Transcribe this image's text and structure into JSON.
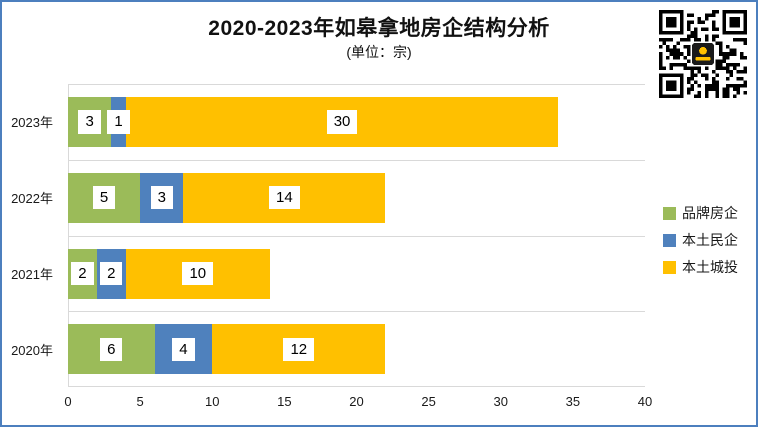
{
  "chart_data": {
    "type": "bar",
    "orientation": "horizontal",
    "stacked": true,
    "title": "2020-2023年如皋拿地房企结构分析",
    "subtitle": "(单位：宗)",
    "categories": [
      "2023年",
      "2022年",
      "2021年",
      "2020年"
    ],
    "series": [
      {
        "name": "品牌房企",
        "color": "#9BBB59",
        "values": [
          3,
          5,
          2,
          6
        ]
      },
      {
        "name": "本土民企",
        "color": "#4F81BD",
        "values": [
          1,
          3,
          2,
          4
        ]
      },
      {
        "name": "本土城投",
        "color": "#FFC000",
        "values": [
          30,
          14,
          10,
          12
        ]
      }
    ],
    "totals": [
      34,
      22,
      14,
      22
    ],
    "xlim": [
      0,
      40
    ],
    "xticks": [
      0,
      5,
      10,
      15,
      20,
      25,
      30,
      35,
      40
    ],
    "legend_position": "right",
    "grid": "horizontal category separator gridlines",
    "data_labels": "each segment value shown in a white box",
    "gridline_color": "#D9D9D9",
    "canvas_border_color": "#4C7FBE"
  },
  "qr": {
    "icon": "qr-code"
  }
}
